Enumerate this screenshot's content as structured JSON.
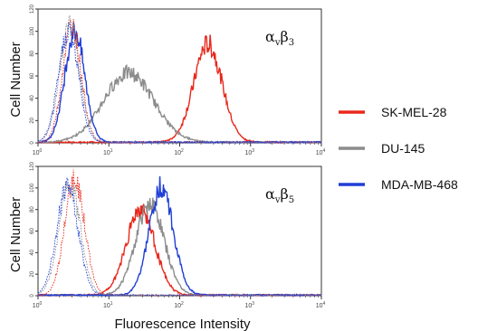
{
  "colors": {
    "sk_mel_28": "#e8281c",
    "du_145": "#8c8c8c",
    "mda_mb_468": "#1f3fd6",
    "axis": "#333333"
  },
  "legend": [
    {
      "label": "SK-MEL-28",
      "color": "#e8281c"
    },
    {
      "label": "DU-145",
      "color": "#8c8c8c"
    },
    {
      "label": "MDA-MB-468",
      "color": "#1f3fd6"
    }
  ],
  "chart_data": [
    {
      "type": "line",
      "panel_label": {
        "alpha": "α",
        "sub1": "v",
        "beta": "β",
        "sub2": "3"
      },
      "ylabel": "Cell Number",
      "xlabel": "",
      "xscale": "log",
      "xlim": [
        1,
        10000
      ],
      "ylim": [
        0,
        120
      ],
      "y_ticks": [
        0,
        20,
        40,
        60,
        80,
        100,
        120
      ],
      "x_ticks": [
        {
          "base": "10",
          "exp": "0"
        },
        {
          "base": "10",
          "exp": "1"
        },
        {
          "base": "10",
          "exp": "2"
        },
        {
          "base": "10",
          "exp": "3"
        },
        {
          "base": "10",
          "exp": "4"
        }
      ],
      "series": [
        {
          "name": "SK-MEL-28",
          "style": "solid",
          "peak_x": 250,
          "peak_y": 88,
          "width": 0.2
        },
        {
          "name": "DU-145",
          "style": "solid",
          "peak_x": 19,
          "peak_y": 62,
          "width": 0.35
        },
        {
          "name": "MDA-MB-468",
          "style": "solid",
          "peak_x": 3.3,
          "peak_y": 100,
          "width": 0.14
        },
        {
          "name": "SK-MEL-28",
          "style": "dotted",
          "peak_x": 3.0,
          "peak_y": 105,
          "width": 0.13
        },
        {
          "name": "DU-145",
          "style": "dotted",
          "peak_x": 2.8,
          "peak_y": 106,
          "width": 0.14
        },
        {
          "name": "MDA-MB-468",
          "style": "dotted",
          "peak_x": 2.7,
          "peak_y": 100,
          "width": 0.14
        }
      ]
    },
    {
      "type": "line",
      "panel_label": {
        "alpha": "α",
        "sub1": "v",
        "beta": "β",
        "sub2": "5"
      },
      "ylabel": "Cell Number",
      "xlabel": "Fluorescence Intensity",
      "xscale": "log",
      "xlim": [
        1,
        10000
      ],
      "ylim": [
        0,
        120
      ],
      "y_ticks": [
        0,
        20,
        40,
        60,
        80,
        100,
        120
      ],
      "x_ticks": [
        {
          "base": "10",
          "exp": "0"
        },
        {
          "base": "10",
          "exp": "1"
        },
        {
          "base": "10",
          "exp": "2"
        },
        {
          "base": "10",
          "exp": "3"
        },
        {
          "base": "10",
          "exp": "4"
        }
      ],
      "series": [
        {
          "name": "SK-MEL-28",
          "style": "solid",
          "peak_x": 28,
          "peak_y": 80,
          "width": 0.2
        },
        {
          "name": "DU-145",
          "style": "solid",
          "peak_x": 38,
          "peak_y": 85,
          "width": 0.2
        },
        {
          "name": "MDA-MB-468",
          "style": "solid",
          "peak_x": 55,
          "peak_y": 100,
          "width": 0.17
        },
        {
          "name": "SK-MEL-28",
          "style": "dotted",
          "peak_x": 3.3,
          "peak_y": 108,
          "width": 0.14
        },
        {
          "name": "DU-145",
          "style": "dotted",
          "peak_x": 2.8,
          "peak_y": 104,
          "width": 0.15
        },
        {
          "name": "MDA-MB-468",
          "style": "dotted",
          "peak_x": 2.6,
          "peak_y": 100,
          "width": 0.15
        }
      ]
    }
  ]
}
